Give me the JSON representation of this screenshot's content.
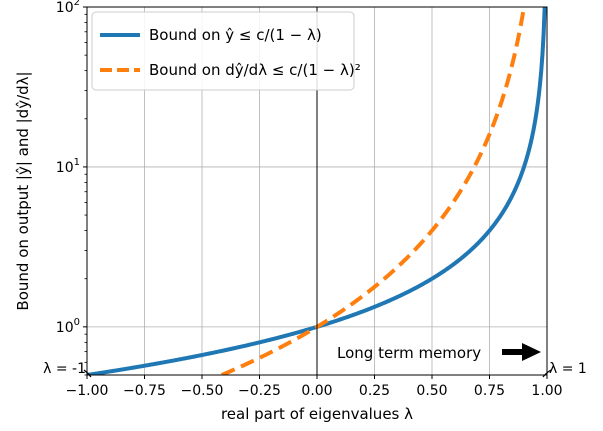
{
  "chart_data": {
    "type": "line",
    "xlabel": "real part of eigenvalues λ",
    "ylabel": "Bound on output |ŷ| and |dŷ/dλ|",
    "xlim": [
      -1.0,
      1.0
    ],
    "ylim": [
      0.5,
      100
    ],
    "yscale": "log",
    "grid": true,
    "legend_position": "top-left",
    "x_ticks": [
      "−1.00",
      "−0.75",
      "−0.50",
      "−0.25",
      "0.00",
      "0.25",
      "0.50",
      "0.75",
      "1.00"
    ],
    "x_tick_values": [
      -1.0,
      -0.75,
      -0.5,
      -0.25,
      0.0,
      0.25,
      0.5,
      0.75,
      1.0
    ],
    "y_ticks": [
      {
        "value": 1,
        "base": "10",
        "exp": "0"
      },
      {
        "value": 10,
        "base": "10",
        "exp": "1"
      },
      {
        "value": 100,
        "base": "10",
        "exp": "2"
      }
    ],
    "series": [
      {
        "name": "Bound on ŷ ≤ c/(1 − λ)",
        "color": "#1f77b4",
        "style": "solid",
        "formula_exponent": 1,
        "x": [
          -1.0,
          -0.75,
          -0.5,
          -0.25,
          0.0,
          0.25,
          0.5,
          0.6,
          0.7,
          0.8,
          0.85,
          0.9,
          0.93,
          0.95,
          0.97,
          0.98,
          0.99
        ],
        "y": [
          0.5,
          0.571,
          0.667,
          0.8,
          1.0,
          1.333,
          2.0,
          2.5,
          3.333,
          5.0,
          6.667,
          10.0,
          14.29,
          20.0,
          33.33,
          50.0,
          100.0
        ]
      },
      {
        "name": "Bound on dŷ/dλ ≤ c/(1 − λ)²",
        "color": "#ff7f0e",
        "style": "dashed",
        "formula_exponent": 2,
        "x": [
          -0.414,
          -0.25,
          0.0,
          0.25,
          0.5,
          0.6,
          0.7,
          0.75,
          0.8,
          0.85,
          0.9
        ],
        "y": [
          0.5,
          0.64,
          1.0,
          1.778,
          4.0,
          6.25,
          11.11,
          16.0,
          25.0,
          44.44,
          100.0
        ]
      }
    ],
    "annotations": {
      "memory_label": "Long term memory",
      "left_marker": "λ = -1",
      "right_marker": "λ = 1"
    }
  }
}
